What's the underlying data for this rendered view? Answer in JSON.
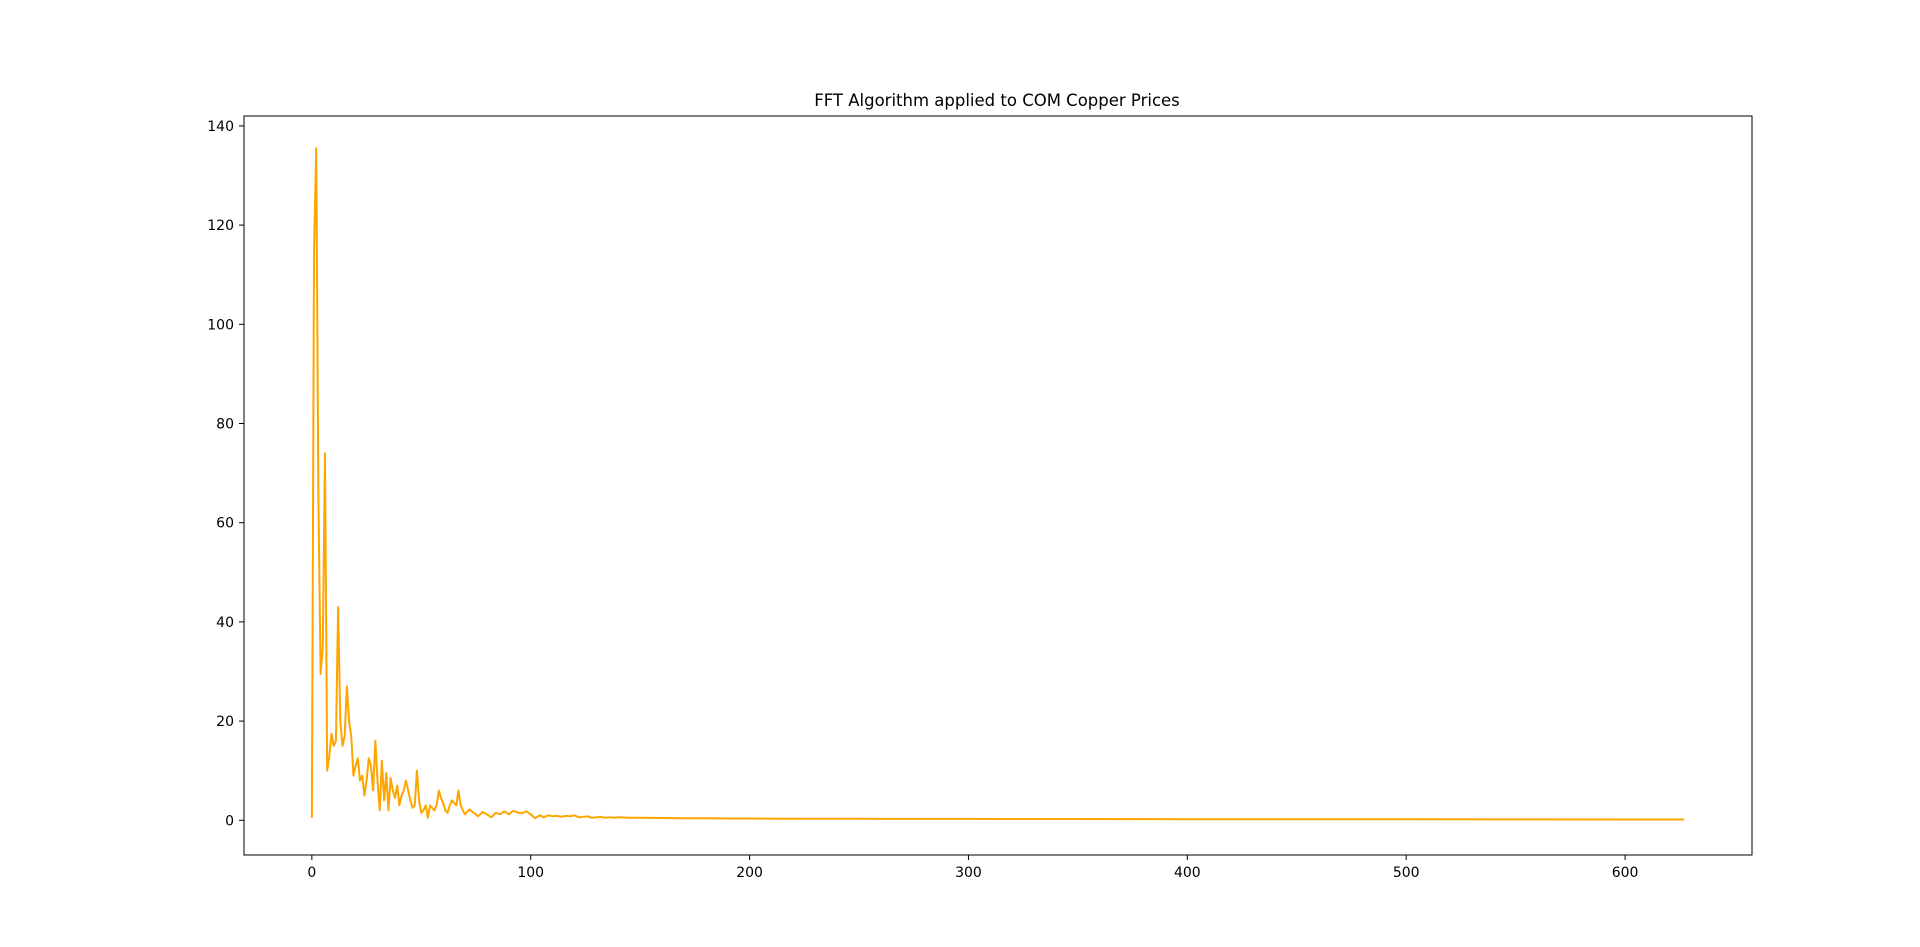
{
  "chart_data": {
    "type": "line",
    "title": "FFT Algorithm applied to COM Copper Prices",
    "xlabel": "",
    "ylabel": "",
    "xlim": [
      -31,
      658
    ],
    "ylim": [
      -7,
      142
    ],
    "x_ticks": [
      0,
      100,
      200,
      300,
      400,
      500,
      600
    ],
    "y_ticks": [
      0,
      20,
      40,
      60,
      80,
      100,
      120,
      140
    ],
    "grid": false,
    "legend": "none",
    "series": [
      {
        "color": "#FFA500",
        "x": [
          0,
          1,
          2,
          3,
          4,
          5,
          6,
          7,
          8,
          9,
          10,
          11,
          12,
          13,
          14,
          15,
          16,
          17,
          18,
          19,
          20,
          21,
          22,
          23,
          24,
          25,
          26,
          27,
          28,
          29,
          30,
          31,
          32,
          33,
          34,
          35,
          36,
          37,
          38,
          39,
          40,
          41,
          42,
          43,
          44,
          45,
          46,
          47,
          48,
          49,
          50,
          51,
          52,
          53,
          54,
          55,
          56,
          57,
          58,
          59,
          60,
          61,
          62,
          63,
          64,
          65,
          66,
          67,
          68,
          69,
          70,
          72,
          74,
          76,
          78,
          80,
          82,
          84,
          86,
          88,
          90,
          92,
          94,
          96,
          98,
          100,
          102,
          104,
          106,
          108,
          110,
          112,
          114,
          116,
          118,
          120,
          122,
          124,
          126,
          128,
          130,
          132,
          134,
          136,
          138,
          140,
          145,
          150,
          160,
          170,
          180,
          190,
          200,
          220,
          250,
          300,
          350,
          400,
          450,
          500,
          550,
          600,
          627
        ],
        "y": [
          0.5,
          115,
          135.5,
          65,
          29.5,
          35,
          74,
          10,
          13,
          17.5,
          15,
          16,
          43,
          20,
          15,
          17,
          27,
          20,
          17,
          9,
          11,
          12.5,
          8,
          9,
          5,
          8,
          12.5,
          11,
          6,
          16,
          8,
          2,
          12,
          4,
          9.5,
          2,
          8.5,
          6,
          4.5,
          7,
          3,
          5,
          6,
          8,
          6,
          4,
          2.5,
          3,
          10,
          4,
          1.5,
          2,
          3,
          0.5,
          3,
          2.5,
          2,
          3,
          6,
          4.5,
          3.5,
          2,
          1.5,
          3,
          4,
          3.5,
          3,
          6,
          3,
          2,
          1.2,
          2.2,
          1.5,
          0.8,
          1.7,
          1.2,
          0.6,
          1.5,
          1.2,
          1.8,
          1.2,
          1.9,
          1.6,
          1.4,
          1.8,
          1.2,
          0.4,
          1,
          0.6,
          1,
          0.8,
          0.9,
          0.7,
          0.9,
          0.8,
          1,
          0.6,
          0.7,
          0.8,
          0.5,
          0.6,
          0.7,
          0.5,
          0.6,
          0.5,
          0.6,
          0.5,
          0.5,
          0.45,
          0.4,
          0.4,
          0.35,
          0.35,
          0.3,
          0.3,
          0.28,
          0.25,
          0.22,
          0.2,
          0.2,
          0.18,
          0.15,
          0.15
        ]
      }
    ]
  }
}
